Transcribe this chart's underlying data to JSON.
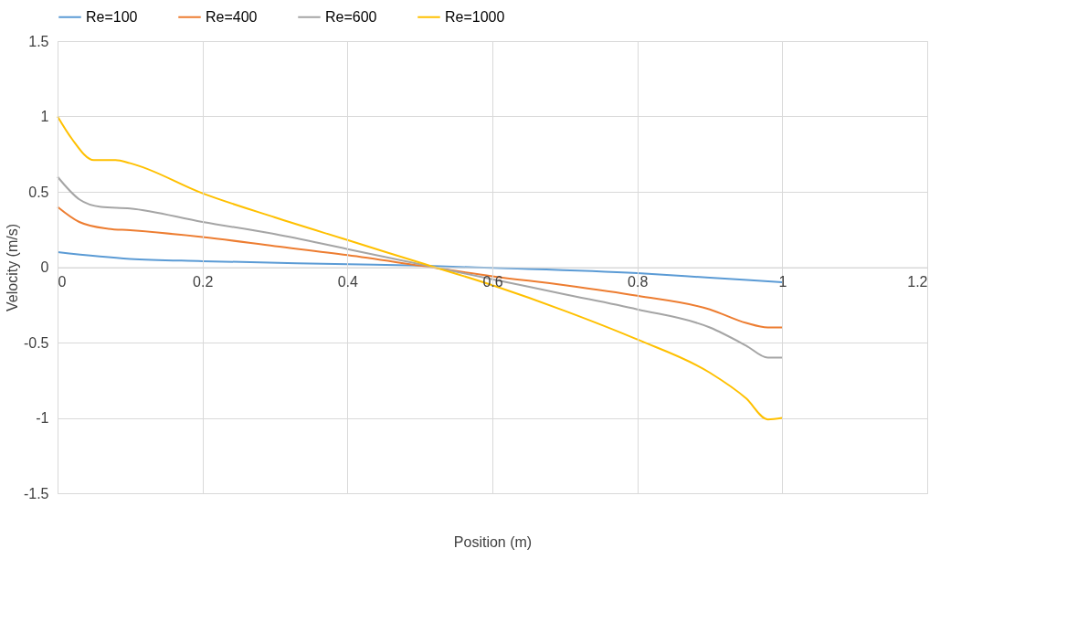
{
  "chart_data": {
    "type": "line",
    "xlabel": "Position (m)",
    "ylabel": "Velocity (m/s)",
    "xlim": [
      0,
      1.2
    ],
    "xticks": [
      0,
      0.2,
      0.4,
      0.6,
      0.8,
      1,
      1.2
    ],
    "ylim": [
      -1.5,
      1.5
    ],
    "yticks": [
      -1.5,
      -1,
      -0.5,
      0,
      0.5,
      1,
      1.5
    ],
    "grid": true,
    "legend": "top",
    "marker": "none",
    "line_style": "solid",
    "series": [
      {
        "name": "Re=100",
        "color": "#5b9bd5",
        "x": [
          0,
          0.1,
          0.2,
          0.4,
          0.5,
          0.6,
          0.8,
          0.9,
          1
        ],
        "values": [
          0.1,
          0.055,
          0.04,
          0.02,
          0.01,
          -0.005,
          -0.04,
          -0.07,
          -0.1
        ]
      },
      {
        "name": "Re=400",
        "color": "#ed7d31",
        "x": [
          0,
          0.03,
          0.07,
          0.1,
          0.2,
          0.3,
          0.4,
          0.5,
          0.6,
          0.7,
          0.8,
          0.9,
          0.95,
          0.98,
          1
        ],
        "values": [
          0.4,
          0.3,
          0.255,
          0.245,
          0.2,
          0.14,
          0.08,
          0.01,
          -0.06,
          -0.12,
          -0.19,
          -0.28,
          -0.37,
          -0.4,
          -0.4
        ]
      },
      {
        "name": "Re=600",
        "color": "#a5a5a5",
        "x": [
          0,
          0.03,
          0.06,
          0.1,
          0.2,
          0.3,
          0.4,
          0.5,
          0.6,
          0.7,
          0.8,
          0.9,
          0.95,
          0.98,
          1
        ],
        "values": [
          0.6,
          0.45,
          0.4,
          0.39,
          0.3,
          0.22,
          0.12,
          0.02,
          -0.08,
          -0.18,
          -0.28,
          -0.4,
          -0.52,
          -0.6,
          -0.6
        ]
      },
      {
        "name": "Re=1000",
        "color": "#ffc000",
        "x": [
          0,
          0.02,
          0.05,
          0.08,
          0.1,
          0.2,
          0.3,
          0.4,
          0.5,
          0.6,
          0.7,
          0.8,
          0.9,
          0.95,
          0.98,
          1
        ],
        "values": [
          1.0,
          0.85,
          0.71,
          0.71,
          0.69,
          0.49,
          0.33,
          0.18,
          0.03,
          -0.12,
          -0.29,
          -0.48,
          -0.7,
          -0.87,
          -1.01,
          -1.0
        ]
      }
    ]
  }
}
